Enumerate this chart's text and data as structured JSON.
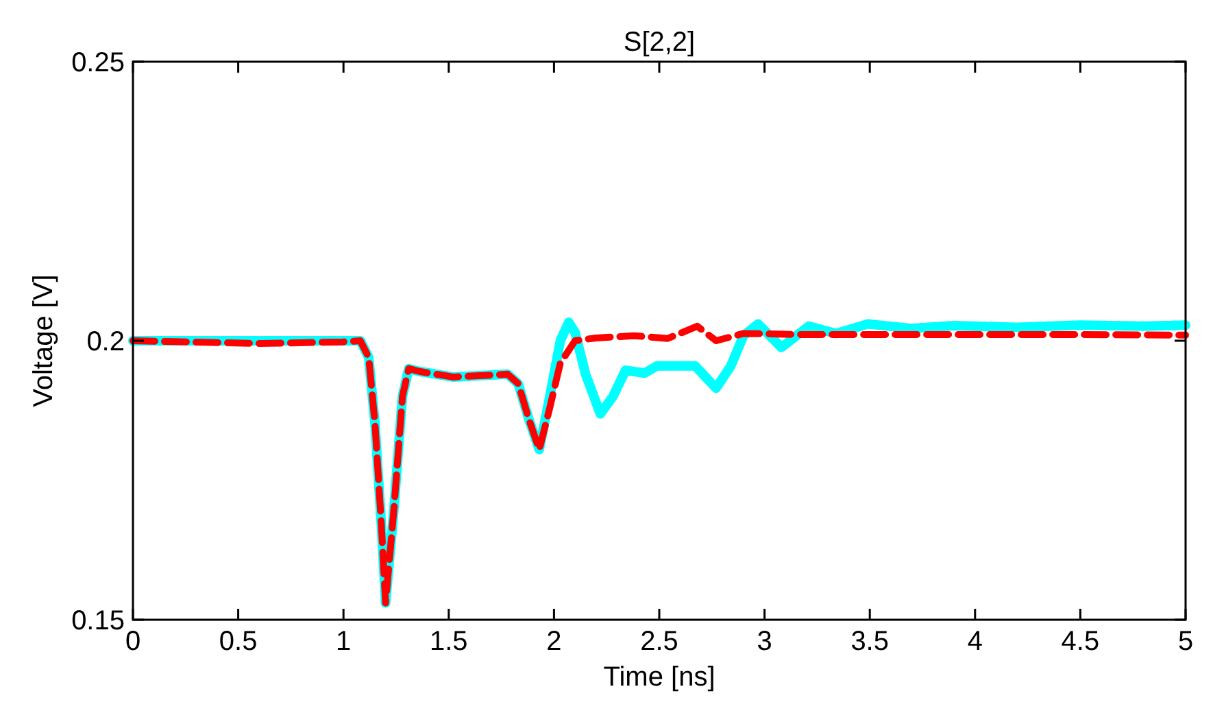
{
  "chart_data": {
    "type": "line",
    "title": "S[2,2]",
    "xlabel": "Time [ns]",
    "ylabel": "Voltage [V]",
    "xlim": [
      0,
      5
    ],
    "xticks": [
      0,
      0.5,
      1,
      1.5,
      2,
      2.5,
      3,
      3.5,
      4,
      4.5,
      5
    ],
    "ylim": [
      0.15,
      0.25
    ],
    "yticks": [
      0.15,
      0.2,
      0.25
    ],
    "grid": false,
    "series": [
      {
        "color": "#00ffff",
        "line_style": "solid",
        "x": [
          0,
          0.6,
          1.0,
          1.08,
          1.12,
          1.15,
          1.18,
          1.2,
          1.24,
          1.28,
          1.31,
          1.36,
          1.52,
          1.78,
          1.83,
          1.88,
          1.93,
          1.98,
          2.03,
          2.07,
          2.1,
          2.15,
          2.22,
          2.28,
          2.34,
          2.43,
          2.49,
          2.67,
          2.77,
          2.84,
          2.9,
          2.97,
          3.08,
          3.21,
          3.34,
          3.49,
          3.7,
          3.9,
          4.2,
          4.5,
          4.8,
          5
        ],
        "values": [
          0.2,
          0.2,
          0.2,
          0.2,
          0.197,
          0.185,
          0.167,
          0.153,
          0.17,
          0.19,
          0.195,
          0.1945,
          0.1935,
          0.194,
          0.1923,
          0.186,
          0.1805,
          0.19,
          0.2,
          0.2033,
          0.2015,
          0.194,
          0.1869,
          0.19,
          0.1947,
          0.1942,
          0.1955,
          0.1955,
          0.1915,
          0.1955,
          0.2009,
          0.203,
          0.1988,
          0.2026,
          0.2013,
          0.203,
          0.2022,
          0.2027,
          0.2024,
          0.2028,
          0.2026,
          0.2028
        ]
      },
      {
        "color": "#ff0000",
        "line_style": "dashed",
        "x": [
          0,
          0.6,
          1.0,
          1.08,
          1.12,
          1.15,
          1.18,
          1.2,
          1.24,
          1.28,
          1.31,
          1.36,
          1.52,
          1.78,
          1.83,
          1.88,
          1.93,
          1.98,
          2.03,
          2.1,
          2.2,
          2.38,
          2.54,
          2.68,
          2.77,
          2.9,
          3.2,
          3.6,
          4.0,
          4.5,
          5
        ],
        "values": [
          0.2,
          0.1995,
          0.1998,
          0.2,
          0.197,
          0.185,
          0.167,
          0.153,
          0.17,
          0.19,
          0.195,
          0.1945,
          0.1935,
          0.194,
          0.1923,
          0.186,
          0.1805,
          0.188,
          0.196,
          0.2,
          0.2005,
          0.2009,
          0.2004,
          0.2026,
          0.2,
          0.2013,
          0.2011,
          0.2011,
          0.2011,
          0.2011,
          0.201
        ]
      }
    ]
  }
}
